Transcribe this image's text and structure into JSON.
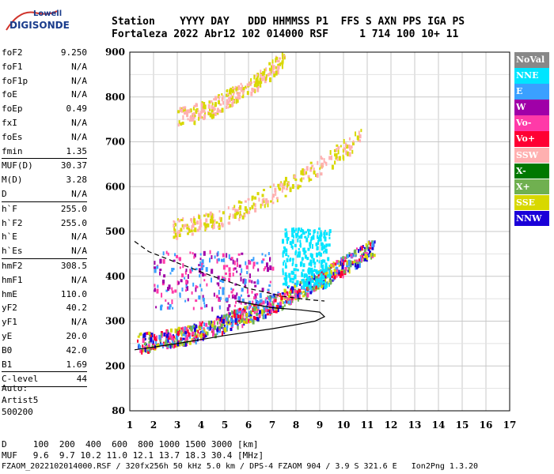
{
  "logo": {
    "top": "Lowell",
    "bottom": "DIGISONDE"
  },
  "header": {
    "line1": "Station    YYYY DAY   DDD HHMMSS P1  FFS S AXN PPS IGA PS",
    "line2": "Fortaleza 2022 Abr12 102 014000 RSF     1 714 100 10+ 11"
  },
  "params": [
    {
      "label": "foF2",
      "value": "9.250"
    },
    {
      "label": "foF1",
      "value": "N/A"
    },
    {
      "label": "foF1p",
      "value": "N/A"
    },
    {
      "label": "foE",
      "value": "N/A"
    },
    {
      "label": "foEp",
      "value": "0.49"
    },
    {
      "label": "fxI",
      "value": "N/A"
    },
    {
      "label": "foEs",
      "value": "N/A"
    },
    {
      "label": "fmin",
      "value": "1.35"
    },
    {
      "divider": true
    },
    {
      "label": "MUF(D)",
      "value": "30.37"
    },
    {
      "label": "M(D)",
      "value": "3.28"
    },
    {
      "label": "D",
      "value": "N/A"
    },
    {
      "divider": true
    },
    {
      "label": "h`F",
      "value": "255.0"
    },
    {
      "label": "h`F2",
      "value": "255.0"
    },
    {
      "label": "h`E",
      "value": "N/A"
    },
    {
      "label": "h`Es",
      "value": "N/A"
    },
    {
      "divider": true
    },
    {
      "label": "hmF2",
      "value": "308.5"
    },
    {
      "label": "hmF1",
      "value": "N/A"
    },
    {
      "label": "hmE",
      "value": "110.0"
    },
    {
      "label": "yF2",
      "value": "40.2"
    },
    {
      "label": "yF1",
      "value": "N/A"
    },
    {
      "label": "yE",
      "value": "20.0"
    },
    {
      "label": "B0",
      "value": "42.0"
    },
    {
      "label": "B1",
      "value": "1.69"
    },
    {
      "divider": true
    },
    {
      "label": "C-level",
      "value": "44"
    },
    {
      "divider": true
    }
  ],
  "auto": {
    "line1": "Auto:",
    "line2": "Artist5",
    "line3": "500200"
  },
  "footer": {
    "line1": "D     100  200  400  600  800 1000 1500 3000 [km]",
    "line2": "MUF   9.6  9.7 10.2 11.0 12.1 13.7 18.3 30.4 [MHz]",
    "line3": "FZAOM_2022102014000.RSF / 320fx256h 50 kHz 5.0 km / DPS-4 FZAOM 904 / 3.9 S 321.6 E   Ion2Png 1.3.20"
  },
  "legend": [
    {
      "label": "NoVal",
      "color": "#888888"
    },
    {
      "label": "NNE",
      "color": "#00e5ff"
    },
    {
      "label": "E",
      "color": "#3aa0ff"
    },
    {
      "label": "W",
      "color": "#a000a8"
    },
    {
      "label": "Vo-",
      "color": "#ff3aa8"
    },
    {
      "label": "Vo+",
      "color": "#ff0033"
    },
    {
      "label": "SSW",
      "color": "#ffb0b0"
    },
    {
      "label": "X-",
      "color": "#007800"
    },
    {
      "label": "X+",
      "color": "#70b050"
    },
    {
      "label": "SSE",
      "color": "#d8d800"
    },
    {
      "label": "NNW",
      "color": "#1a00d8"
    }
  ],
  "chart_data": {
    "type": "scatter",
    "title": "",
    "xlabel": "",
    "ylabel": "",
    "xlim": [
      1,
      17
    ],
    "ylim": [
      100,
      900
    ],
    "y_axis_bottom_label": "80",
    "x_ticks": [
      "1",
      "2",
      "3",
      "4",
      "5",
      "6",
      "7",
      "8",
      "9",
      "10",
      "11",
      "12",
      "13",
      "14",
      "15",
      "16",
      "17"
    ],
    "y_ticks": [
      "200",
      "300",
      "400",
      "500",
      "600",
      "700",
      "800",
      "900"
    ],
    "grid": true,
    "traces": [
      {
        "name": "O-trace (F2)",
        "x_range": [
          1.3,
          11.3
        ],
        "h_start": 255,
        "h_end": 470,
        "colors": [
          "Vo+",
          "Vo-",
          "E",
          "X+",
          "SSE",
          "NNW"
        ]
      },
      {
        "name": "2nd hop",
        "x_range": [
          2.7,
          10.8
        ],
        "h_start": 510,
        "h_end": 720,
        "colors": [
          "SSE",
          "SSW"
        ]
      },
      {
        "name": "3rd hop",
        "x_range": [
          3.0,
          7.5
        ],
        "h_start": 760,
        "h_end": 890,
        "colors": [
          "SSW",
          "SSE"
        ]
      },
      {
        "name": "W spread",
        "x_range": [
          2.0,
          7.0
        ],
        "h_start": 330,
        "h_end": 460,
        "colors": [
          "W",
          "Vo-",
          "E"
        ]
      },
      {
        "name": "NNE spread",
        "x_range": [
          7.4,
          9.4
        ],
        "h_start": 380,
        "h_end": 510,
        "colors": [
          "NNE"
        ]
      }
    ],
    "profile_solid": [
      [
        1.2,
        236
      ],
      [
        3,
        250
      ],
      [
        5,
        268
      ],
      [
        7,
        283
      ],
      [
        8,
        292
      ],
      [
        8.8,
        300
      ],
      [
        9.2,
        310
      ],
      [
        9.0,
        320
      ],
      [
        8.2,
        325
      ],
      [
        7.0,
        330
      ],
      [
        5.5,
        345
      ]
    ],
    "profile_dashed": [
      [
        1.2,
        478
      ],
      [
        1.8,
        455
      ],
      [
        3,
        430
      ],
      [
        4.5,
        400
      ],
      [
        6,
        373
      ],
      [
        7.5,
        355
      ],
      [
        8.5,
        348
      ],
      [
        9.2,
        345
      ]
    ]
  }
}
